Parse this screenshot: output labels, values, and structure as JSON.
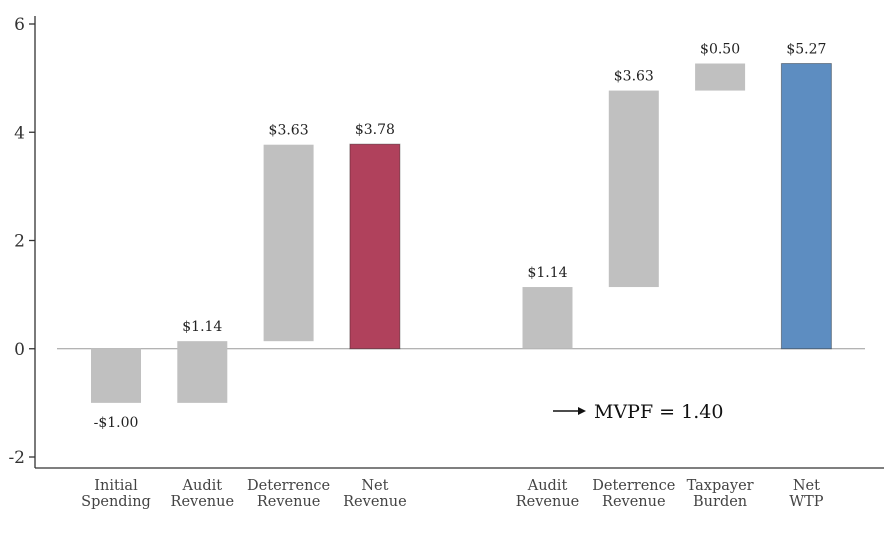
{
  "chart_data": {
    "type": "bar",
    "subtype": "waterfall",
    "title": "",
    "xlabel": "",
    "ylabel": "",
    "ylim": [
      -2,
      6
    ],
    "yticks": [
      6,
      4,
      2,
      0,
      -2
    ],
    "ytick_labels": [
      "6",
      "4",
      "2",
      "0",
      "-2"
    ],
    "grid": false,
    "colors": {
      "component": "#c0c0c0",
      "net_revenue": "#b0415c",
      "net_wtp": "#5d8dc1",
      "axis": "#333333",
      "zero_line": "#9a9a9a"
    },
    "groups": [
      {
        "bars": [
          {
            "category": "Initial Spending",
            "lines": [
              "Initial",
              "Spending"
            ],
            "value": -1.0,
            "start": 0,
            "end": -1.0,
            "label": "-$1.00",
            "kind": "component"
          },
          {
            "category": "Audit Revenue",
            "lines": [
              "Audit",
              "Revenue"
            ],
            "value": 1.14,
            "start": -1.0,
            "end": 0.14,
            "label": "$1.14",
            "kind": "component"
          },
          {
            "category": "Deterrence Revenue",
            "lines": [
              "Deterrence",
              "Revenue"
            ],
            "value": 3.63,
            "start": 0.14,
            "end": 3.77,
            "label": "$3.63",
            "kind": "component"
          },
          {
            "category": "Net Revenue",
            "lines": [
              "Net",
              "Revenue"
            ],
            "value": 3.78,
            "start": 0,
            "end": 3.78,
            "label": "$3.78",
            "kind": "net_revenue"
          }
        ]
      },
      {
        "bars": [
          {
            "category": "Audit Revenue",
            "lines": [
              "Audit",
              "Revenue"
            ],
            "value": 1.14,
            "start": 0,
            "end": 1.14,
            "label": "$1.14",
            "kind": "component"
          },
          {
            "category": "Deterrence Revenue",
            "lines": [
              "Deterrence",
              "Revenue"
            ],
            "value": 3.63,
            "start": 1.14,
            "end": 4.77,
            "label": "$3.63",
            "kind": "component"
          },
          {
            "category": "Taxpayer Burden",
            "lines": [
              "Taxpayer",
              "Burden"
            ],
            "value": 0.5,
            "start": 4.77,
            "end": 5.27,
            "label": "$0.50",
            "kind": "component"
          },
          {
            "category": "Net WTP",
            "lines": [
              "Net",
              "WTP"
            ],
            "value": 5.27,
            "start": 0,
            "end": 5.27,
            "label": "$5.27",
            "kind": "net_wtp"
          }
        ]
      }
    ],
    "annotation": {
      "text": "MVPF = 1.40",
      "arrow": true,
      "x_slot": 5.55,
      "y": -1.15
    }
  }
}
